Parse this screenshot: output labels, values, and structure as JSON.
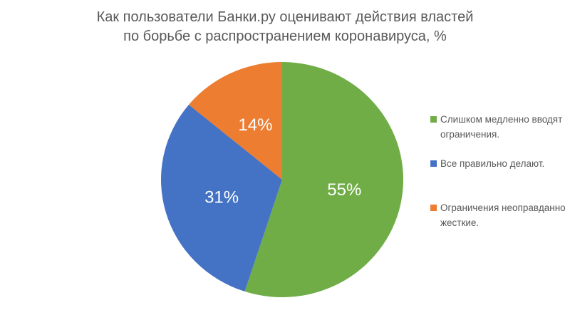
{
  "chart_data": {
    "type": "pie",
    "title": "Как пользователи Банки.ру оценивают действия властей по борьбе с распространением коронавируса, %",
    "title_lines": [
      "Как пользователи Банки.ру оценивают действия властей",
      "по борьбе с распространением коронавируса, %"
    ],
    "unit": "%",
    "start_angle_deg": 0,
    "direction": "clockwise",
    "legend_position": "right",
    "background_color": "#FFFFFF",
    "title_text_color": "#595959",
    "legend_text_color": "#595959",
    "value_label_color": "#FFFFFF",
    "slices": [
      {
        "id": "too-slow",
        "label": "Слишком медленно вводят ограничения.",
        "value": 55,
        "display_label": "55%",
        "color": "#70AD47"
      },
      {
        "id": "doing-right",
        "label": "Все правильно делают.",
        "value": 31,
        "display_label": "31%",
        "color": "#4472C4"
      },
      {
        "id": "too-harsh",
        "label": "Ограничения неоправданно жесткие.",
        "value": 14,
        "display_label": "14%",
        "color": "#ED7D31"
      }
    ]
  }
}
